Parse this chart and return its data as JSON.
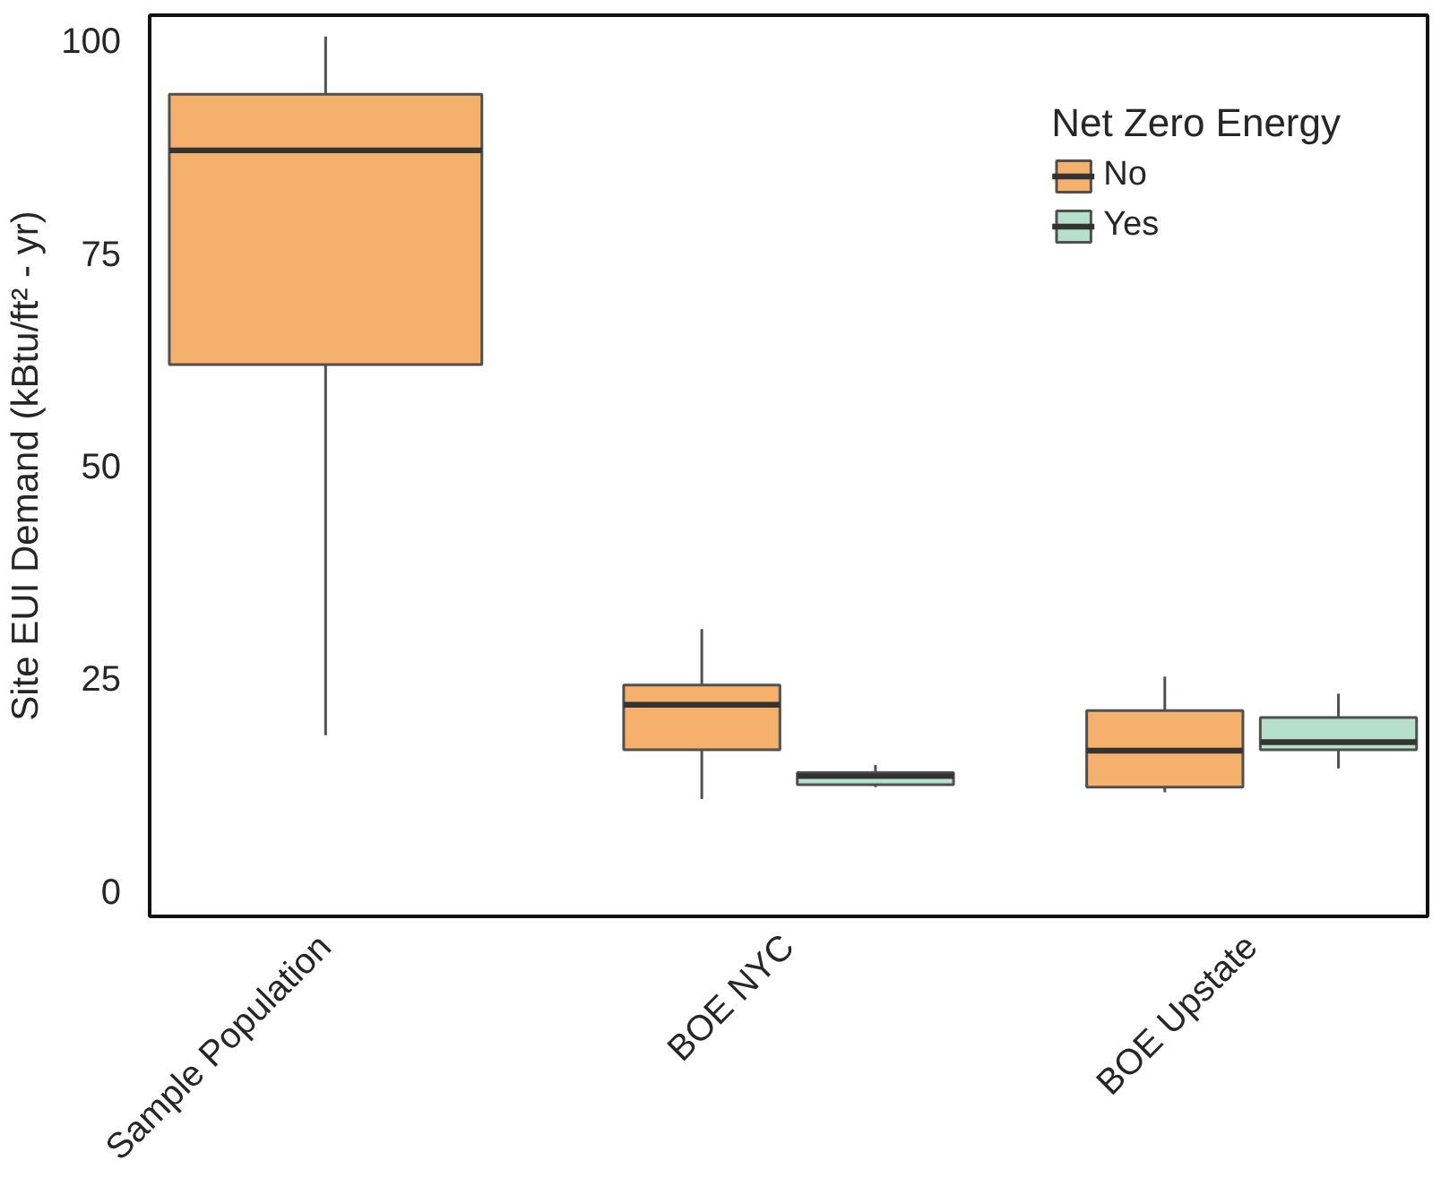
{
  "chart_data": {
    "type": "box",
    "categories": [
      "Sample Population",
      "BOE NYC",
      "BOE Upstate"
    ],
    "ylabel": "Site EUI Demand (kBtu/ft² - yr)",
    "legend_title": "Net Zero Energy",
    "legend": "top right",
    "ylim": [
      -3,
      103
    ],
    "yticks": [
      0,
      25,
      50,
      75,
      100
    ],
    "series": [
      {
        "name": "No",
        "color": "#f5b06b",
        "boxes": [
          {
            "low": 18.3,
            "q1": 61.9,
            "median": 87.1,
            "q3": 93.7,
            "high": 100.5
          },
          {
            "low": 10.8,
            "q1": 16.6,
            "median": 21.9,
            "q3": 24.2,
            "high": 30.8
          },
          {
            "low": 11.6,
            "q1": 12.2,
            "median": 16.5,
            "q3": 21.2,
            "high": 25.2
          }
        ]
      },
      {
        "name": "Yes",
        "color": "#b4e0cc",
        "boxes": [
          null,
          {
            "low": 12.2,
            "q1": 12.5,
            "median": 13.5,
            "q3": 13.9,
            "high": 14.8
          },
          {
            "low": 14.4,
            "q1": 16.6,
            "median": 17.5,
            "q3": 20.4,
            "high": 23.2
          }
        ]
      }
    ]
  }
}
